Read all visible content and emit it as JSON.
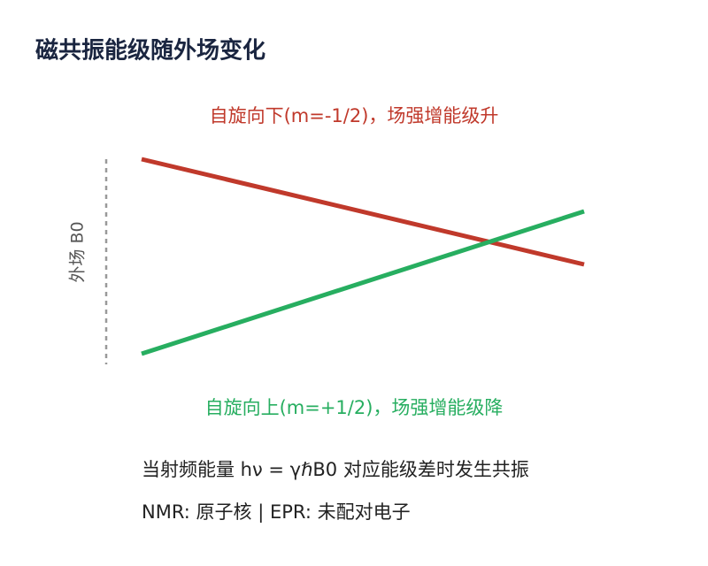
{
  "header": {
    "title": "磁共振能级随外场变化"
  },
  "diagram": {
    "upper_label": "自旋向下(m=-1/2)，场强增能级升",
    "lower_label": "自旋向上(m=+1/2)，场强增能级降",
    "axis_label": "外场 B0"
  },
  "notes": [
    "当射频能量 hν = γℏB0 对应能级差时发生共振",
    "NMR: 原子核 | EPR: 未配对电子"
  ]
}
